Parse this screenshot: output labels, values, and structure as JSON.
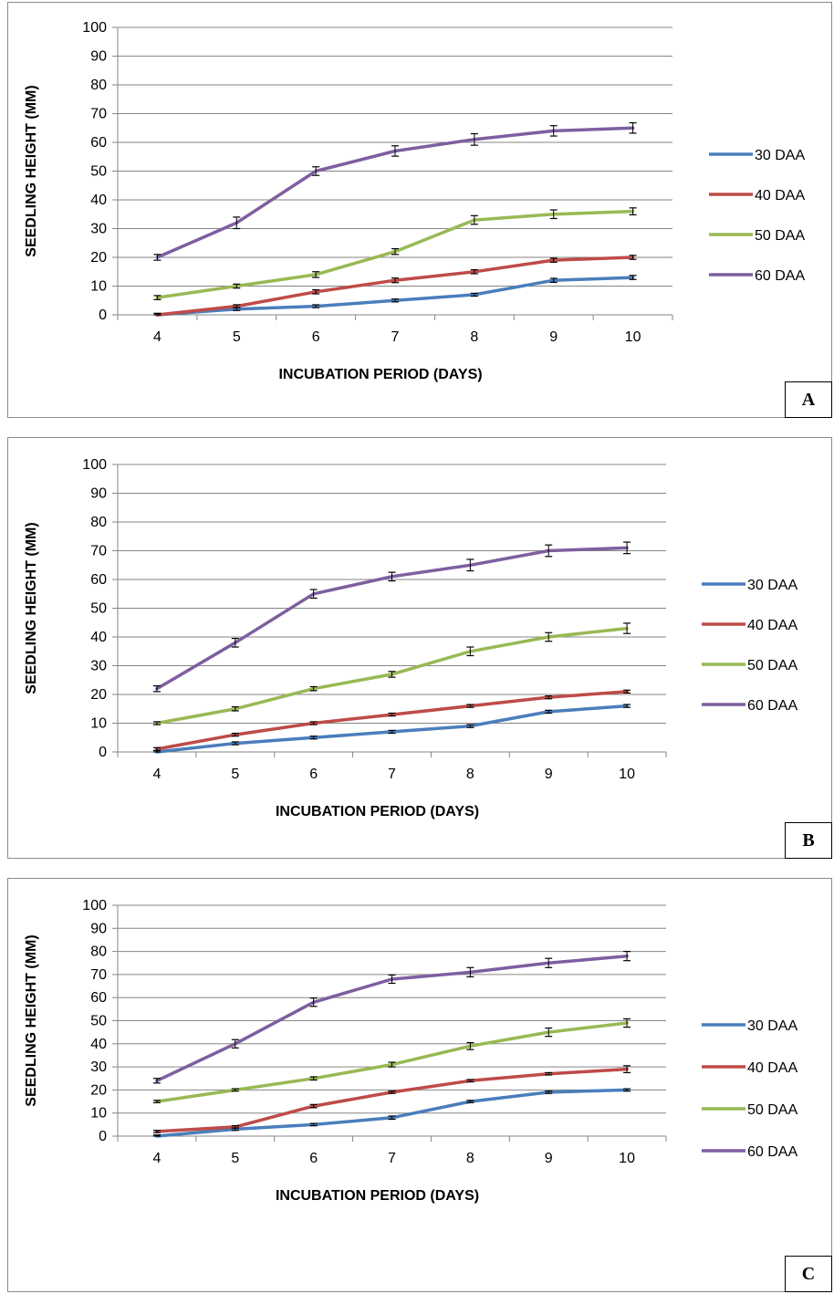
{
  "colors": {
    "30 DAA": "#4a7ebb",
    "40 DAA": "#be4b48",
    "50 DAA": "#98b954",
    "60 DAA": "#7d5fa0",
    "grid": "#868686",
    "axis": "#868686",
    "error_bar": "#000000"
  },
  "chart_data": [
    {
      "type": "line",
      "panel_label": "A",
      "xlabel": "INCUBATION PERIOD (DAYS)",
      "ylabel": "SEEDLING HEIGHT (MM)",
      "categories": [
        "4",
        "5",
        "6",
        "7",
        "8",
        "9",
        "10"
      ],
      "ylim": [
        0,
        100
      ],
      "yticks": [
        0,
        10,
        20,
        30,
        40,
        50,
        60,
        70,
        80,
        90,
        100
      ],
      "grid": "horizontal",
      "legend_position": "right",
      "series": [
        {
          "name": "30 DAA",
          "values": [
            0,
            2,
            3,
            5,
            7,
            12,
            13
          ],
          "errors": [
            0.5,
            0.5,
            0.5,
            0.5,
            0.5,
            0.7,
            0.7
          ]
        },
        {
          "name": "40 DAA",
          "values": [
            0,
            3,
            8,
            12,
            15,
            19,
            20
          ],
          "errors": [
            0.5,
            0.5,
            0.7,
            0.8,
            0.7,
            0.7,
            0.7
          ]
        },
        {
          "name": "50 DAA",
          "values": [
            6,
            10,
            14,
            22,
            33,
            35,
            36
          ],
          "errors": [
            0.7,
            0.7,
            1,
            1,
            1.5,
            1.5,
            1.2
          ]
        },
        {
          "name": "60 DAA",
          "values": [
            20,
            32,
            50,
            57,
            61,
            64,
            65
          ],
          "errors": [
            1,
            2,
            1.5,
            1.8,
            2,
            1.8,
            1.8
          ]
        }
      ]
    },
    {
      "type": "line",
      "panel_label": "B",
      "xlabel": "INCUBATION PERIOD (DAYS)",
      "ylabel": "SEEDLING HEIGHT (MM)",
      "categories": [
        "4",
        "5",
        "6",
        "7",
        "8",
        "9",
        "10"
      ],
      "ylim": [
        0,
        100
      ],
      "yticks": [
        0,
        10,
        20,
        30,
        40,
        50,
        60,
        70,
        80,
        90,
        100
      ],
      "grid": "horizontal",
      "legend_position": "right",
      "series": [
        {
          "name": "30 DAA",
          "values": [
            0,
            3,
            5,
            7,
            9,
            14,
            16
          ],
          "errors": [
            0.5,
            0.5,
            0.5,
            0.5,
            0.5,
            0.5,
            0.5
          ]
        },
        {
          "name": "40 DAA",
          "values": [
            1,
            6,
            10,
            13,
            16,
            19,
            21
          ],
          "errors": [
            0.5,
            0.5,
            0.5,
            0.5,
            0.5,
            0.5,
            0.5
          ]
        },
        {
          "name": "50 DAA",
          "values": [
            10,
            15,
            22,
            27,
            35,
            40,
            43
          ],
          "errors": [
            0.5,
            0.7,
            0.7,
            1,
            1.5,
            1.5,
            1.8
          ]
        },
        {
          "name": "60 DAA",
          "values": [
            22,
            38,
            55,
            61,
            65,
            70,
            71
          ],
          "errors": [
            1,
            1.5,
            1.5,
            1.5,
            2,
            2,
            2
          ]
        }
      ]
    },
    {
      "type": "line",
      "panel_label": "C",
      "xlabel": "INCUBATION PERIOD (DAYS)",
      "ylabel": "SEEDLING HEIGHT (MM)",
      "categories": [
        "4",
        "5",
        "6",
        "7",
        "8",
        "9",
        "10"
      ],
      "ylim": [
        0,
        100
      ],
      "yticks": [
        0,
        10,
        20,
        30,
        40,
        50,
        60,
        70,
        80,
        90,
        100
      ],
      "grid": "horizontal",
      "legend_position": "right",
      "series": [
        {
          "name": "30 DAA",
          "values": [
            0,
            3,
            5,
            8,
            15,
            19,
            20
          ],
          "errors": [
            0.5,
            0.5,
            0.5,
            0.7,
            0.5,
            0.5,
            0.5
          ]
        },
        {
          "name": "40 DAA",
          "values": [
            2,
            4,
            13,
            19,
            24,
            27,
            29
          ],
          "errors": [
            0.5,
            0.5,
            0.7,
            0.5,
            0.5,
            0.5,
            1.5
          ]
        },
        {
          "name": "50 DAA",
          "values": [
            15,
            20,
            25,
            31,
            39,
            45,
            49
          ],
          "errors": [
            0.5,
            0.5,
            0.7,
            1,
            1.5,
            1.8,
            1.8
          ]
        },
        {
          "name": "60 DAA",
          "values": [
            24,
            40,
            58,
            68,
            71,
            75,
            78
          ],
          "errors": [
            1,
            1.8,
            1.8,
            1.8,
            2,
            2,
            2
          ]
        }
      ]
    }
  ]
}
